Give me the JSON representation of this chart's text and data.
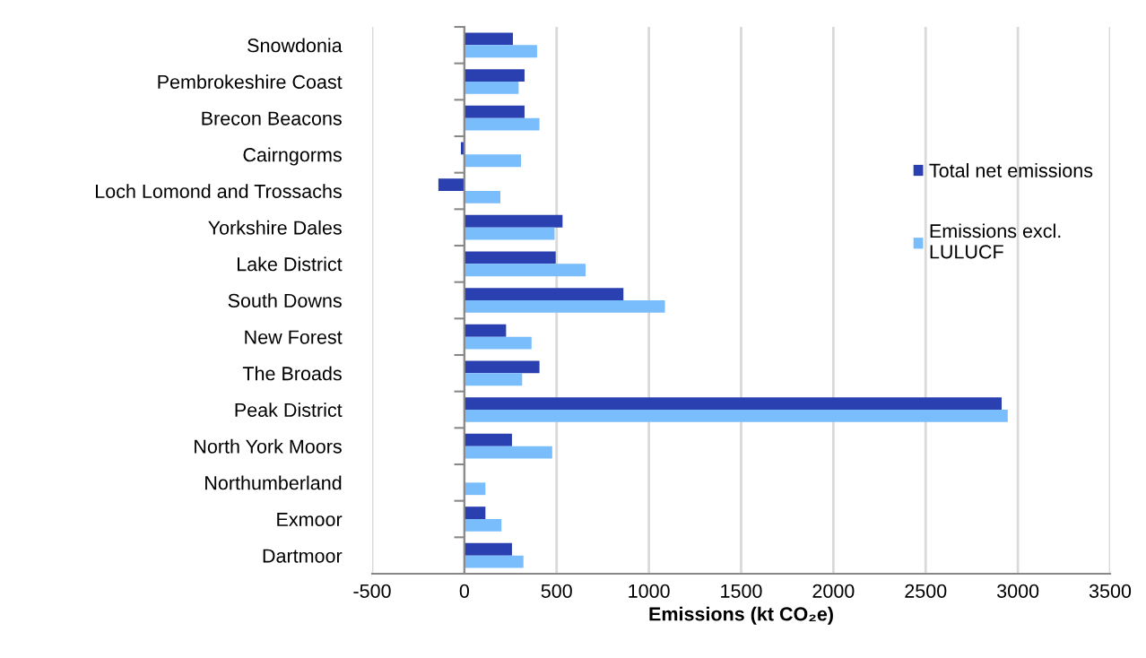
{
  "chart_data": {
    "type": "bar",
    "orientation": "horizontal",
    "xlabel": "Emissions (kt CO₂e)",
    "categories": [
      "Snowdonia",
      "Pembrokeshire Coast",
      "Brecon Beacons",
      "Cairngorms",
      "Loch Lomond and Trossachs",
      "Yorkshire Dales",
      "Lake District",
      "South Downs",
      "New Forest",
      "The Broads",
      "Peak District",
      "North York Moors",
      "Northumberland",
      "Exmoor",
      "Dartmoor"
    ],
    "series": [
      {
        "name": "Total net emissions",
        "color": "#2b40b0",
        "values": [
          263,
          326,
          326,
          -19,
          -141,
          532,
          495,
          862,
          226,
          407,
          2912,
          258,
          null,
          114,
          258
        ]
      },
      {
        "name": "Emissions excl.\nLULUCF",
        "color": "#79bdfc",
        "values": [
          394,
          294,
          407,
          307,
          195,
          489,
          657,
          1087,
          364,
          313,
          2945,
          476,
          114,
          201,
          320
        ]
      }
    ],
    "xlim": [
      -500,
      3500
    ],
    "xticks": [
      -500,
      0,
      500,
      1000,
      1500,
      2000,
      2500,
      3000,
      3500
    ],
    "grid": "x",
    "legend": "right"
  }
}
